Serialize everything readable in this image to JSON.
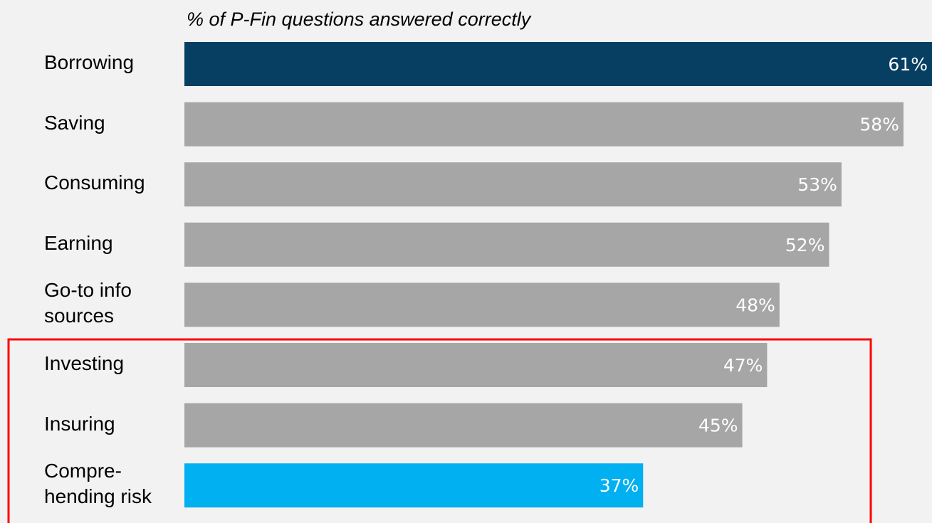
{
  "chart_data": {
    "type": "bar",
    "orientation": "horizontal",
    "title": "% of P-Fin questions answered correctly",
    "categories": [
      "Borrowing",
      "Saving",
      "Consuming",
      "Earning",
      "Go-to info\nsources",
      "Investing",
      "Insuring",
      "Compre-\nhending risk"
    ],
    "values": [
      61,
      58,
      53,
      52,
      48,
      47,
      45,
      37
    ],
    "value_labels": [
      "61%",
      "58%",
      "53%",
      "52%",
      "48%",
      "47%",
      "45%",
      "37%"
    ],
    "colors": [
      "#073f63",
      "#a6a6a6",
      "#a6a6a6",
      "#a6a6a6",
      "#a6a6a6",
      "#a6a6a6",
      "#a6a6a6",
      "#00b0f0"
    ],
    "xlim": [
      0,
      60.3
    ]
  }
}
